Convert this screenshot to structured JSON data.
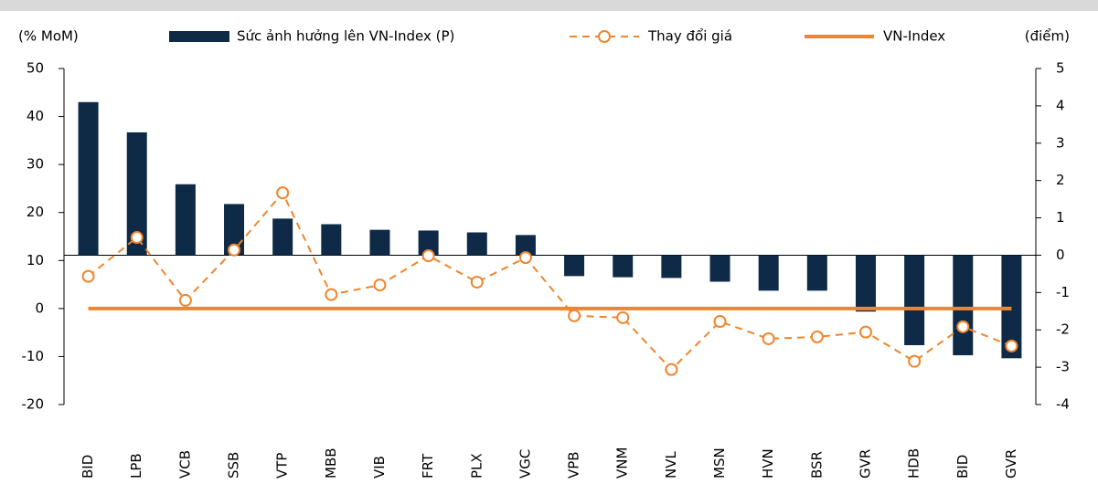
{
  "chart_data": {
    "type": "bar",
    "y_axis_title": "(% MoM)",
    "y2_axis_title": "(điểm)",
    "categories": [
      "BID",
      "LPB",
      "VCB",
      "SSB",
      "VTP",
      "MBB",
      "VIB",
      "FRT",
      "PLX",
      "VGC",
      "VPB",
      "VNM",
      "NVL",
      "MSN",
      "HVN",
      "BSR",
      "GVR",
      "HDB",
      "BID",
      "GVR"
    ],
    "series": [
      {
        "name": "Sức ảnh hưởng lên VN-Index (P)",
        "type": "bar",
        "axis": "y2",
        "color": "#0e2a47",
        "values": [
          4.1,
          3.29,
          1.9,
          1.37,
          0.98,
          0.83,
          0.68,
          0.66,
          0.61,
          0.54,
          -0.56,
          -0.59,
          -0.61,
          -0.71,
          -0.95,
          -0.95,
          -1.51,
          -2.41,
          -2.68,
          -2.76
        ]
      },
      {
        "name": "Thay đổi giá",
        "type": "line",
        "axis": "y",
        "color": "#f0852d",
        "line_style": "dashed",
        "marker": "circle",
        "values": [
          6.7,
          14.8,
          1.7,
          12.2,
          24.1,
          2.9,
          4.9,
          11.0,
          5.5,
          10.6,
          -1.5,
          -1.9,
          -12.7,
          -2.7,
          -6.3,
          -5.9,
          -4.9,
          -11.0,
          -3.8,
          -7.8
        ]
      },
      {
        "name": "VN-Index",
        "type": "line",
        "axis": "y",
        "color": "#f0852d",
        "line_style": "solid",
        "values": [
          0,
          0,
          0,
          0,
          0,
          0,
          0,
          0,
          0,
          0,
          0,
          0,
          0,
          0,
          0,
          0,
          0,
          0,
          0,
          0
        ]
      }
    ],
    "ylim": [
      -20,
      50
    ],
    "yticks": [
      -20,
      -10,
      0,
      10,
      20,
      30,
      40,
      50
    ],
    "y2lim": [
      -4,
      5
    ],
    "y2ticks": [
      -4,
      -3,
      -2,
      -1,
      0,
      1,
      2,
      3,
      4,
      5
    ],
    "negative_tick_color": "#ff0000"
  }
}
